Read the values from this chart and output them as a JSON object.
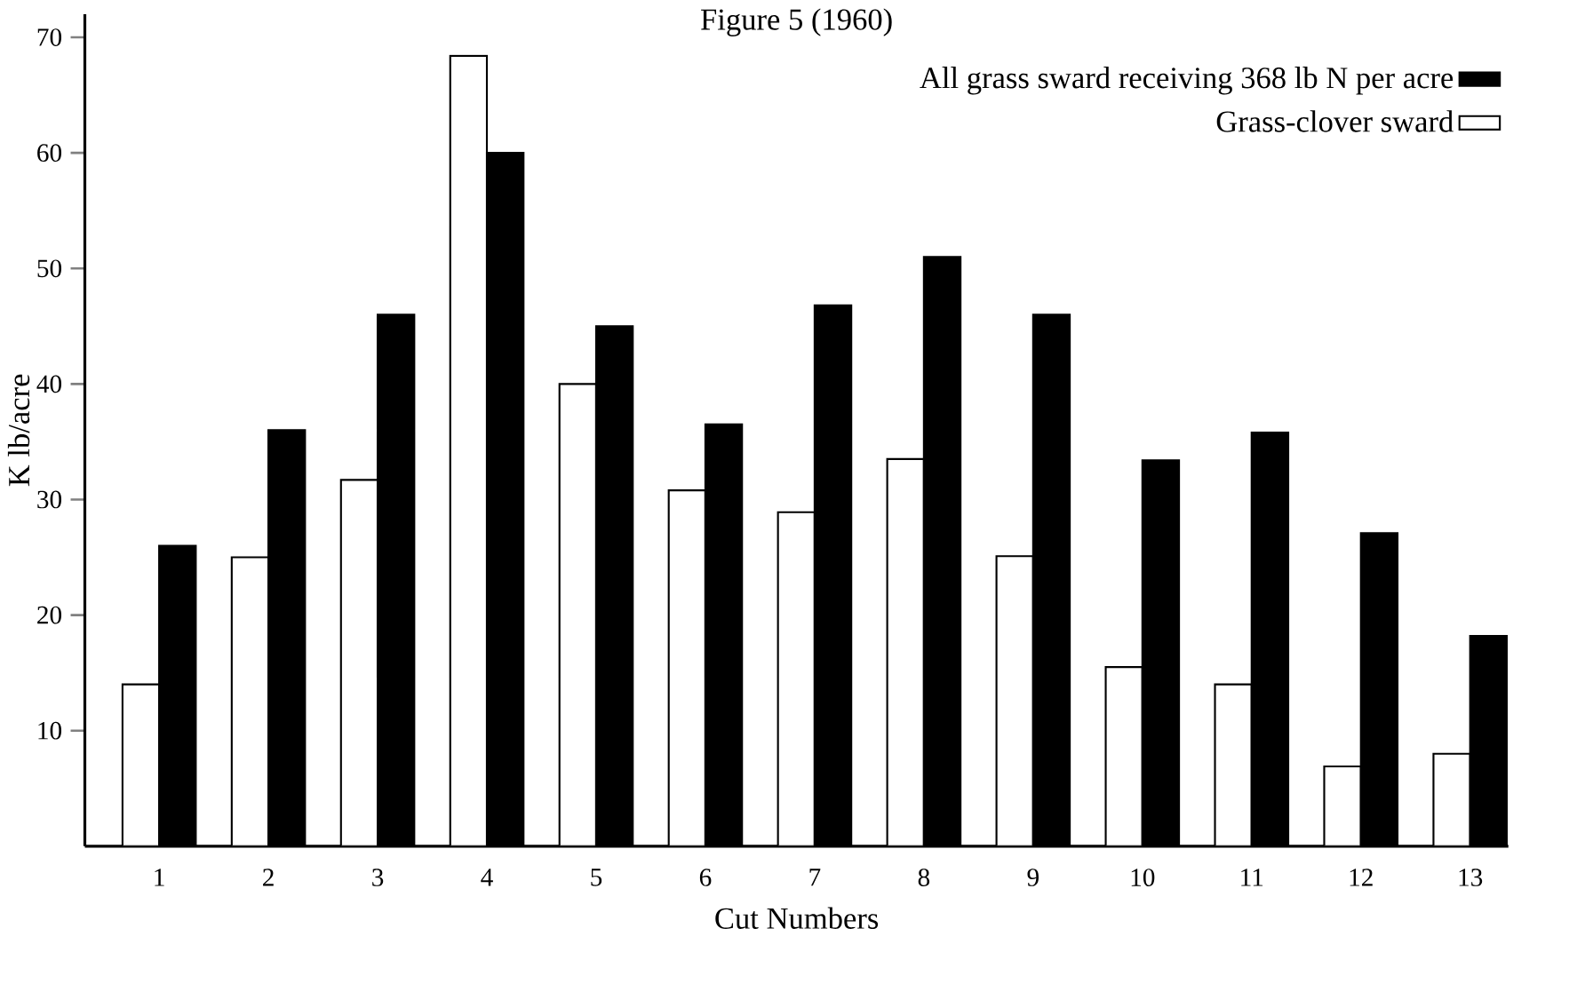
{
  "chart_data": {
    "type": "bar",
    "title": "Figure 5 (1960)",
    "xlabel": "Cut Numbers",
    "ylabel": "K lb/acre",
    "categories": [
      "1",
      "2",
      "3",
      "4",
      "5",
      "6",
      "7",
      "8",
      "9",
      "10",
      "11",
      "12",
      "13"
    ],
    "series": [
      {
        "name": "Grass-clover sward",
        "color": "#ffffff",
        "values": [
          14,
          25,
          31.7,
          68.4,
          40,
          30.8,
          28.9,
          33.5,
          25.1,
          15.5,
          14,
          6.9,
          8
        ]
      },
      {
        "name": "All grass sward receiving 368 lb N per acre",
        "color": "#000000",
        "values": [
          26,
          36,
          46,
          60,
          45,
          36.5,
          46.8,
          51,
          46,
          33.4,
          35.8,
          27.1,
          18.2
        ]
      }
    ],
    "ylim": [
      0,
      72
    ],
    "yticks": [
      10,
      20,
      30,
      40,
      50,
      60,
      70
    ],
    "legend": "top right"
  }
}
